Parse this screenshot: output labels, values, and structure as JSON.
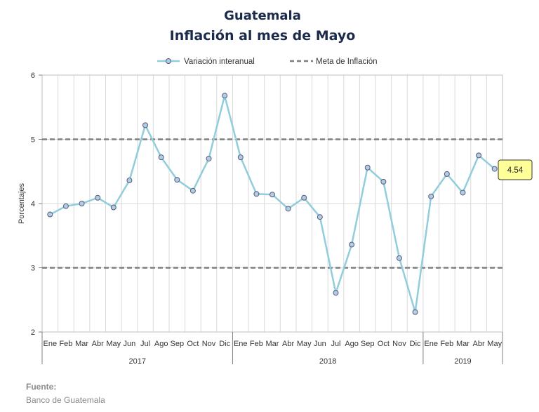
{
  "chart_data": {
    "type": "line",
    "title": "Guatemala",
    "subtitle": "Inflación al mes de Mayo",
    "ylabel": "Porcentajes",
    "ylim": [
      2,
      6
    ],
    "yticks": [
      2,
      3,
      4,
      5,
      6
    ],
    "grid": true,
    "legend_position": "top",
    "categories": [
      "Ene",
      "Feb",
      "Mar",
      "Abr",
      "May",
      "Jun",
      "Jul",
      "Ago",
      "Sep",
      "Oct",
      "Nov",
      "Dic",
      "Ene",
      "Feb",
      "Mar",
      "Abr",
      "May",
      "Jun",
      "Jul",
      "Ago",
      "Sep",
      "Oct",
      "Nov",
      "Dic",
      "Ene",
      "Feb",
      "Mar",
      "Abr",
      "May"
    ],
    "years": [
      {
        "label": "2017",
        "start": 0,
        "end": 11
      },
      {
        "label": "2018",
        "start": 12,
        "end": 23
      },
      {
        "label": "2019",
        "start": 24,
        "end": 28
      }
    ],
    "series": [
      {
        "name": "Variación interanual",
        "color": "#92cddc",
        "values": [
          3.83,
          3.96,
          4.0,
          4.09,
          3.94,
          4.36,
          5.22,
          4.72,
          4.37,
          4.2,
          4.7,
          5.68,
          4.72,
          4.15,
          4.14,
          3.92,
          4.09,
          3.79,
          2.61,
          3.36,
          4.56,
          4.34,
          3.15,
          2.31,
          4.11,
          4.46,
          4.17,
          4.75,
          4.54
        ]
      }
    ],
    "target_lines": {
      "name": "Meta de Inflación",
      "color": "#7f7f7f",
      "values": [
        3,
        5
      ]
    },
    "last_value_label": "4.54"
  },
  "source": {
    "heading": "Fuente:",
    "text": "Banco de Guatemala"
  }
}
